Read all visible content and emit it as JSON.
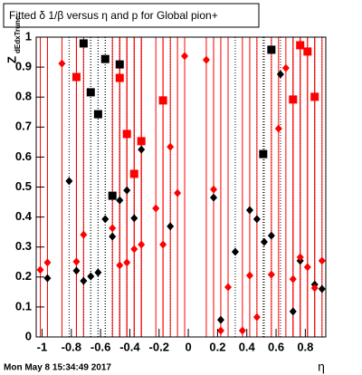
{
  "chart_data": {
    "type": "scatter",
    "title": "Fitted δ 1/β versus η and p for Global pion+",
    "xlabel": "η",
    "ylabel": "Z",
    "ylabel_sub": "dEdxTrunc",
    "footer": "Mon May  8 15:34:49 2017",
    "xlim": [
      -1.04,
      0.94
    ],
    "ylim": [
      0,
      1
    ],
    "xticks": [
      -1,
      -0.8,
      -0.6,
      -0.4,
      -0.2,
      0,
      0.2,
      0.4,
      0.6,
      0.8
    ],
    "yticks": [
      0,
      0.1,
      0.2,
      0.3,
      0.4,
      0.5,
      0.6,
      0.7,
      0.8,
      0.9,
      1
    ],
    "series": [
      {
        "color": "#000000",
        "marker": "square",
        "x": [
          -0.716,
          -0.667,
          -0.617,
          -0.568,
          -0.519,
          -0.469,
          0.512,
          0.568
        ],
        "values": [
          0.979,
          0.816,
          0.743,
          0.927,
          0.471,
          0.909,
          0.61,
          0.958
        ]
      },
      {
        "color": "#ff0000",
        "marker": "square",
        "x": [
          -0.765,
          -0.469,
          -0.42,
          -0.37,
          -0.321,
          -0.173,
          0.716,
          0.765,
          0.815,
          0.864
        ],
        "values": [
          0.867,
          0.864,
          0.677,
          0.544,
          0.653,
          0.789,
          0.792,
          0.973,
          0.952,
          0.801
        ]
      },
      {
        "color": "#000000",
        "marker": "diamond",
        "x": [
          -0.963,
          -0.815,
          -0.765,
          -0.716,
          -0.667,
          -0.617,
          -0.568,
          -0.519,
          -0.469,
          -0.42,
          -0.37,
          -0.321,
          -0.123,
          0.173,
          0.222,
          0.321,
          0.42,
          0.469,
          0.519,
          0.568,
          0.63,
          0.716,
          0.765,
          0.864,
          0.914
        ],
        "values": [
          0.196,
          0.52,
          0.221,
          0.187,
          0.202,
          0.215,
          0.393,
          0.335,
          0.456,
          0.489,
          0.396,
          0.625,
          0.369,
          0.465,
          0.057,
          0.284,
          0.423,
          0.393,
          0.317,
          0.338,
          0.876,
          0.085,
          0.254,
          0.175,
          0.16
        ]
      },
      {
        "color": "#ff0000",
        "marker": "diamond",
        "x": [
          -1.012,
          -0.963,
          -0.864,
          -0.765,
          -0.716,
          -0.519,
          -0.469,
          -0.42,
          -0.37,
          -0.321,
          -0.222,
          -0.173,
          -0.123,
          -0.074,
          -0.025,
          0.123,
          0.173,
          0.222,
          0.272,
          0.37,
          0.42,
          0.469,
          0.568,
          0.617,
          0.667,
          0.716,
          0.765,
          0.815,
          0.864,
          0.914
        ],
        "values": [
          0.224,
          0.248,
          0.912,
          0.251,
          0.341,
          0.363,
          0.239,
          0.248,
          0.293,
          0.308,
          0.429,
          0.308,
          0.634,
          0.48,
          0.937,
          0.924,
          0.492,
          0.021,
          0.166,
          0.021,
          0.205,
          0.066,
          0.208,
          0.695,
          0.897,
          0.193,
          0.266,
          0.233,
          0.163,
          0.254
        ]
      }
    ]
  }
}
